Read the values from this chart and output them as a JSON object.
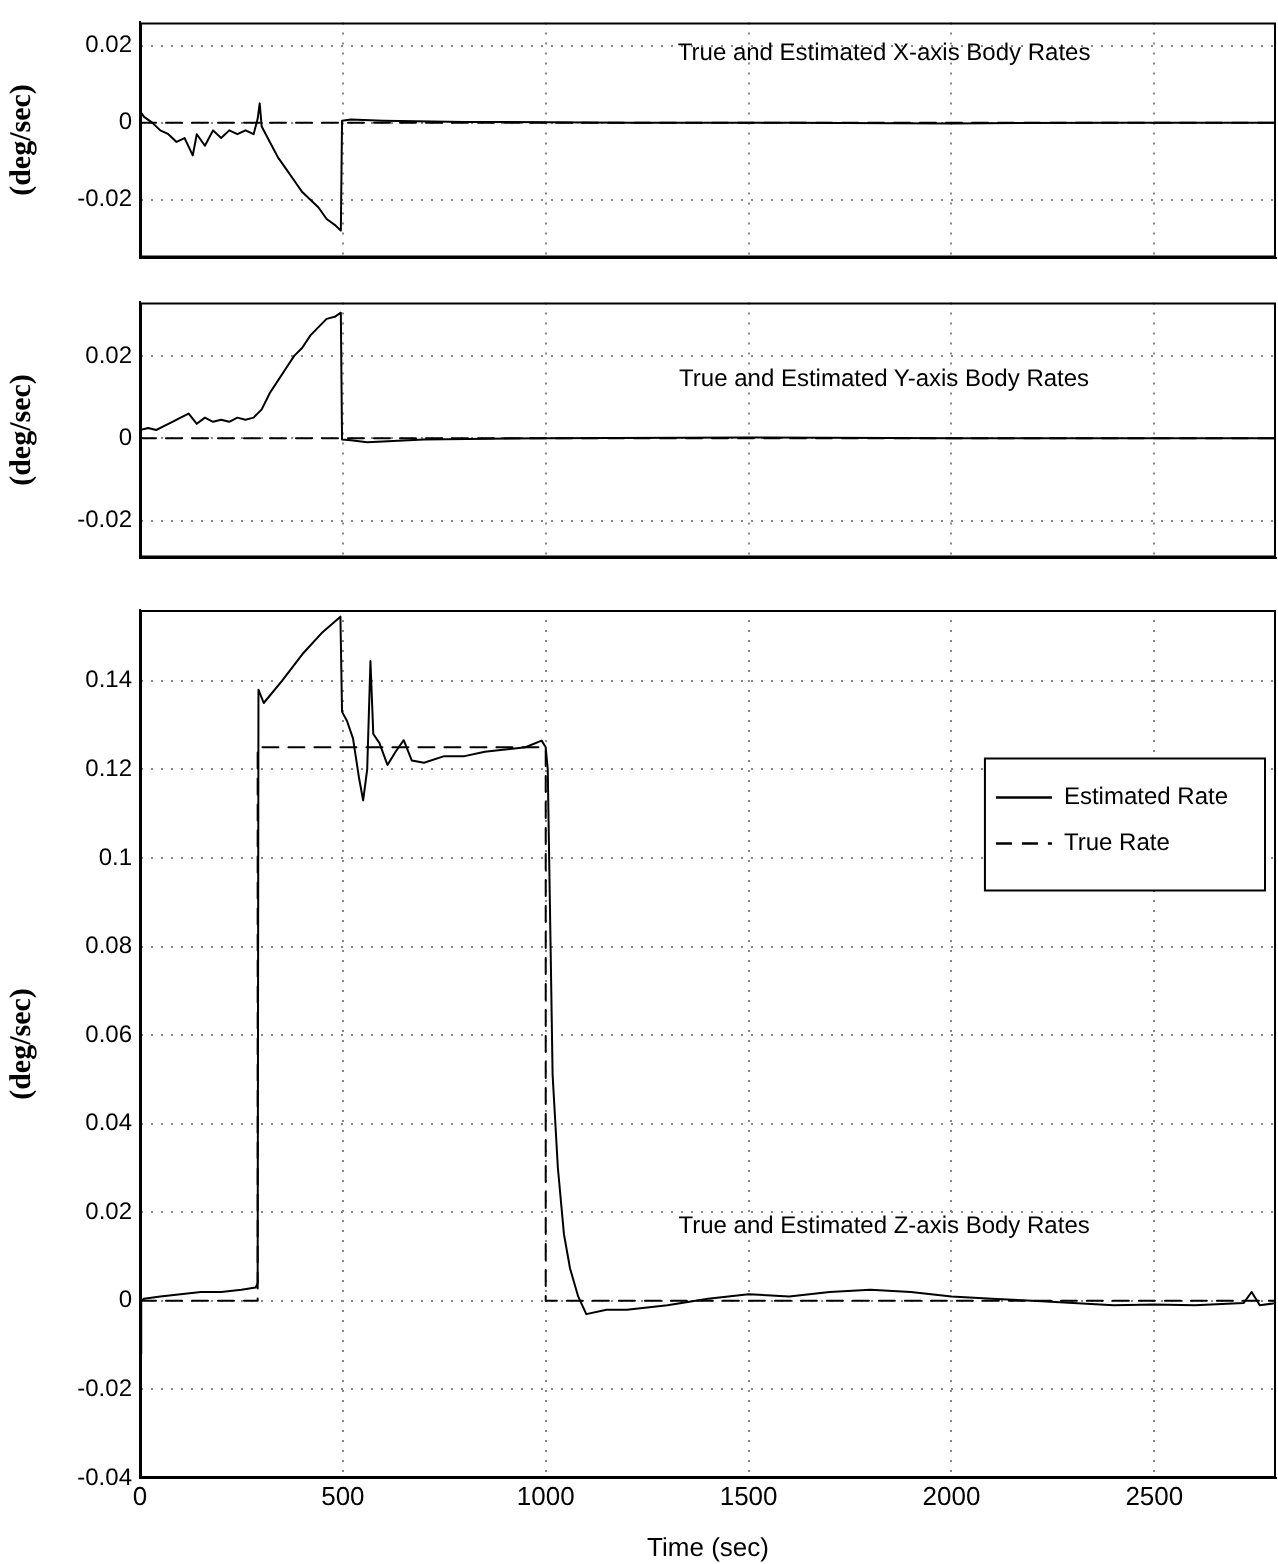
{
  "chart_data": [
    {
      "type": "line",
      "title": "True and Estimated X-axis Body Rates",
      "ylabel": "(deg/sec)",
      "xlim": [
        0,
        2800
      ],
      "xticks": [
        0,
        500,
        1000,
        1500,
        2000,
        2500
      ],
      "ylim": [
        -0.035,
        0.026
      ],
      "yticks": [
        -0.02,
        0,
        0.02
      ],
      "grid": true,
      "tick_labels": "y",
      "marker": "none",
      "series": [
        {
          "color": "#000000",
          "line_style": "solid",
          "x": [
            0,
            10,
            30,
            50,
            70,
            90,
            110,
            130,
            140,
            160,
            180,
            200,
            220,
            240,
            260,
            280,
            290,
            295,
            300,
            320,
            340,
            360,
            380,
            400,
            420,
            440,
            460,
            480,
            495,
            498,
            520,
            600,
            800,
            1200,
            1600,
            2000,
            2400,
            2800
          ],
          "values": [
            0.003,
            0.0015,
            0,
            -0.002,
            -0.003,
            -0.005,
            -0.004,
            -0.0085,
            -0.003,
            -0.006,
            -0.002,
            -0.004,
            -0.002,
            -0.003,
            -0.002,
            -0.003,
            0.001,
            0.005,
            -0.001,
            -0.005,
            -0.009,
            -0.012,
            -0.015,
            -0.018,
            -0.02,
            -0.022,
            -0.025,
            -0.0265,
            -0.028,
            0.0005,
            0.0008,
            0.0005,
            0.0002,
            0,
            0,
            -0.0002,
            0,
            0
          ]
        },
        {
          "color": "#000000",
          "line_style": "dashed",
          "x": [
            0,
            2800
          ],
          "values": [
            0,
            0
          ]
        }
      ]
    },
    {
      "type": "line",
      "title": "True and Estimated Y-axis Body Rates",
      "ylabel": "(deg/sec)",
      "xlim": [
        0,
        2800
      ],
      "xticks": [
        0,
        500,
        1000,
        1500,
        2000,
        2500
      ],
      "ylim": [
        -0.029,
        0.033
      ],
      "yticks": [
        -0.02,
        0,
        0.02
      ],
      "grid": true,
      "tick_labels": "y",
      "marker": "none",
      "series": [
        {
          "color": "#000000",
          "line_style": "solid",
          "x": [
            0,
            20,
            40,
            60,
            80,
            100,
            120,
            140,
            160,
            180,
            200,
            220,
            240,
            260,
            280,
            300,
            320,
            340,
            360,
            380,
            400,
            420,
            440,
            460,
            480,
            495,
            498,
            520,
            560,
            700,
            1000,
            1500,
            2000,
            2500,
            2800
          ],
          "values": [
            0.002,
            0.0025,
            0.002,
            0.003,
            0.004,
            0.005,
            0.006,
            0.0035,
            0.005,
            0.004,
            0.0045,
            0.004,
            0.005,
            0.0045,
            0.005,
            0.007,
            0.011,
            0.014,
            0.017,
            0.02,
            0.022,
            0.025,
            0.027,
            0.029,
            0.0295,
            0.0305,
            -0.0003,
            -0.0005,
            -0.001,
            -0.0003,
            0,
            0.0002,
            0,
            0,
            0
          ]
        },
        {
          "color": "#000000",
          "line_style": "dashed",
          "x": [
            0,
            2800
          ],
          "values": [
            0,
            0
          ]
        }
      ]
    },
    {
      "type": "line",
      "title": "True and Estimated Z-axis Body Rates",
      "xlabel": "Time (sec)",
      "ylabel": "(deg/sec)",
      "xlim": [
        0,
        2800
      ],
      "xticks": [
        0,
        500,
        1000,
        1500,
        2000,
        2500
      ],
      "ylim": [
        -0.04,
        0.156
      ],
      "yticks": [
        -0.04,
        -0.02,
        0,
        0.02,
        0.04,
        0.06,
        0.08,
        0.1,
        0.12,
        0.14
      ],
      "grid": true,
      "legend": "right",
      "marker": "none",
      "series": [
        {
          "name": "Estimated Rate",
          "color": "#000000",
          "line_style": "solid",
          "x": [
            0,
            3,
            10,
            50,
            100,
            150,
            200,
            250,
            285,
            290,
            292,
            305,
            350,
            400,
            450,
            494,
            498,
            510,
            525,
            540,
            550,
            560,
            568,
            575,
            590,
            610,
            630,
            650,
            670,
            700,
            750,
            800,
            850,
            900,
            950,
            990,
            1000,
            1005,
            1012,
            1017,
            1030,
            1045,
            1060,
            1080,
            1100,
            1150,
            1200,
            1300,
            1400,
            1500,
            1600,
            1700,
            1800,
            1900,
            2000,
            2100,
            2200,
            2300,
            2400,
            2500,
            2600,
            2720,
            2740,
            2760,
            2800
          ],
          "values": [
            -0.012,
            0,
            0.0005,
            0.001,
            0.0015,
            0.002,
            0.002,
            0.0025,
            0.003,
            0.004,
            0.138,
            0.135,
            0.14,
            0.146,
            0.151,
            0.1545,
            0.133,
            0.131,
            0.127,
            0.118,
            0.113,
            0.12,
            0.1445,
            0.128,
            0.126,
            0.121,
            0.124,
            0.1266,
            0.122,
            0.1215,
            0.123,
            0.123,
            0.124,
            0.1245,
            0.125,
            0.1265,
            0.125,
            0.12,
            0.08,
            0.051,
            0.03,
            0.015,
            0.0073,
            0.001,
            -0.003,
            -0.002,
            -0.002,
            -0.001,
            0.0005,
            0.0015,
            0.001,
            0.002,
            0.0025,
            0.002,
            0.001,
            0.0005,
            0,
            -0.0005,
            -0.001,
            -0.0008,
            -0.001,
            -0.0005,
            0.002,
            -0.001,
            -0.0005
          ]
        },
        {
          "name": "True Rate",
          "color": "#000000",
          "line_style": "dashed",
          "x": [
            0,
            290,
            290,
            1000,
            1000,
            2800
          ],
          "values": [
            0,
            0,
            0.125,
            0.125,
            0,
            0
          ]
        }
      ]
    }
  ]
}
